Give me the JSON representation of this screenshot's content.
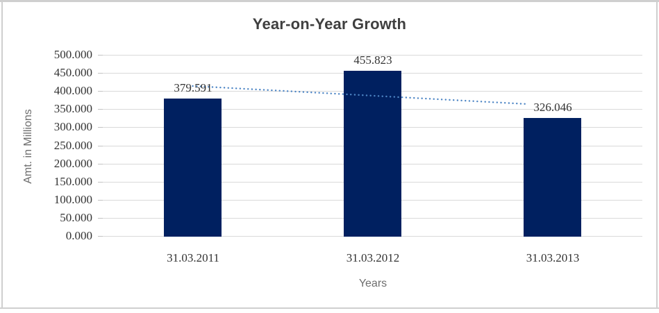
{
  "chart_data": {
    "type": "bar",
    "title": "Year-on-Year Growth",
    "xlabel": "Years",
    "ylabel": "Amt. in Millions",
    "categories": [
      "31.03.2011",
      "31.03.2012",
      "31.03.2013"
    ],
    "values": [
      379.591,
      455.823,
      326.046
    ],
    "value_labels": [
      "379.591",
      "455.823",
      "326.046"
    ],
    "ylim": [
      0,
      500
    ],
    "ytick_step": 50,
    "ytick_labels": [
      "0.000",
      "50.000",
      "100.000",
      "150.000",
      "200.000",
      "250.000",
      "300.000",
      "350.000",
      "400.000",
      "450.000",
      "500.000"
    ],
    "grid": "horizontal",
    "legend": "none",
    "bar_color": "#002060",
    "trendline": {
      "type": "linear",
      "style": "dotted",
      "color": "#4E86C5",
      "start_value": 413.9,
      "end_value": 360.4
    },
    "colors": {
      "gridline": "#D9D9D9",
      "tick_text": "#333333",
      "title_text": "#3F3F3F",
      "axis_title_text": "#6E6E6E",
      "frame": "#CFCFCF"
    }
  }
}
